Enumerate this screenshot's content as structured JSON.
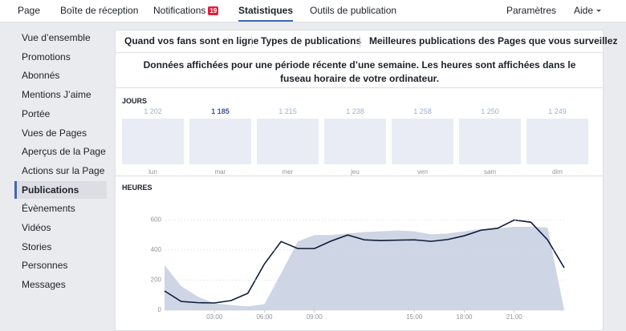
{
  "nav": {
    "items": [
      "Page",
      "Boîte de réception",
      "Notifications",
      "Statistiques",
      "Outils de publication"
    ],
    "badge": "19",
    "active": 3,
    "right": [
      "Paramètres",
      "Aide"
    ]
  },
  "sidebar": {
    "items": [
      "Vue d’ensemble",
      "Promotions",
      "Abonnés",
      "Mentions J’aime",
      "Portée",
      "Vues de Pages",
      "Aperçus de la Page",
      "Actions sur la Page",
      "Publications",
      "Évènements",
      "Vidéos",
      "Stories",
      "Personnes",
      "Messages"
    ],
    "active": 8
  },
  "tabs": {
    "items": [
      "Quand vos fans sont en ligne",
      "Types de publications",
      "Meilleures publications des Pages que vous surveillez"
    ],
    "active": 0
  },
  "notice": "Données affichées pour une période récente d’une semaine. Les heures sont affichées dans le fuseau horaire de votre ordinateur.",
  "days": {
    "label": "JOURS",
    "selected": 1,
    "items": [
      {
        "day": "lun",
        "count": "1 202"
      },
      {
        "day": "mar",
        "count": "1 185"
      },
      {
        "day": "mer",
        "count": "1 215"
      },
      {
        "day": "jeu",
        "count": "1 238"
      },
      {
        "day": "ven",
        "count": "1 258"
      },
      {
        "day": "sam",
        "count": "1 250"
      },
      {
        "day": "dim",
        "count": "1 249"
      }
    ]
  },
  "chart_data": {
    "type": "line",
    "title": "HEURES",
    "x": [
      0,
      1,
      2,
      3,
      4,
      5,
      6,
      7,
      8,
      9,
      10,
      11,
      12,
      13,
      14,
      15,
      16,
      17,
      18,
      19,
      20,
      21,
      22,
      23,
      24
    ],
    "xlim": [
      0,
      24
    ],
    "xticks": [
      {
        "value": 3,
        "label": "03:00"
      },
      {
        "value": 6,
        "label": "06:00"
      },
      {
        "value": 9,
        "label": "09:00"
      },
      {
        "value": 15,
        "label": "15:00"
      },
      {
        "value": 18,
        "label": "18:00"
      },
      {
        "value": 21,
        "label": "21:00"
      }
    ],
    "ylim": [
      0,
      720
    ],
    "yticks": [
      0,
      200,
      400,
      600
    ],
    "grid": true,
    "series": [
      {
        "color": "#ced5e4",
        "fill": true,
        "values": [
          300,
          160,
          90,
          45,
          35,
          25,
          40,
          245,
          457,
          500,
          500,
          510,
          520,
          525,
          530,
          525,
          505,
          510,
          525,
          540,
          545,
          555,
          555,
          550,
          0
        ]
      },
      {
        "color": "#0e1a3b",
        "fill": false,
        "values": [
          128,
          58,
          50,
          48,
          64,
          112,
          308,
          457,
          410,
          410,
          460,
          500,
          468,
          463,
          466,
          468,
          458,
          470,
          495,
          532,
          545,
          600,
          585,
          468,
          282
        ]
      }
    ]
  }
}
